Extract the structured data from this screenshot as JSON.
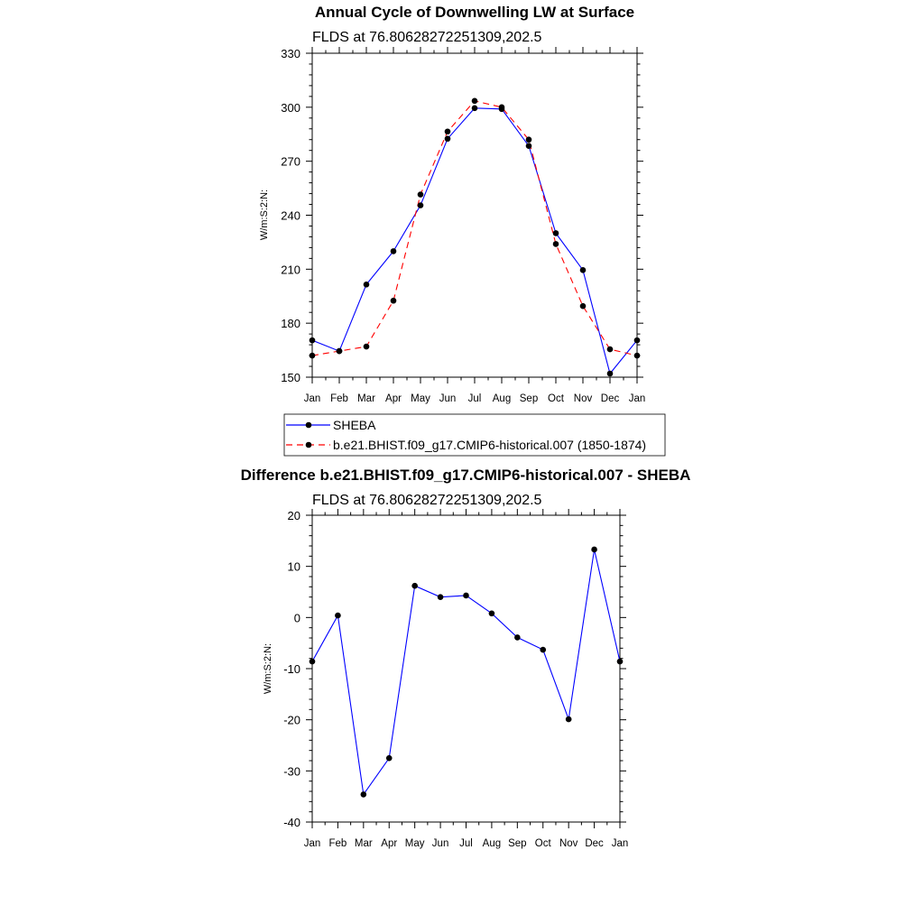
{
  "chart_data": [
    {
      "type": "line",
      "title": "Annual Cycle of Downwelling LW at Surface",
      "subtitle": "FLDS at 76.80628272251309,202.5",
      "ylabel": "W/m:S:2:N:",
      "ylim": [
        150,
        330
      ],
      "yticks": [
        "150",
        "180",
        "210",
        "240",
        "270",
        "300",
        "330"
      ],
      "categories": [
        "Jan",
        "Feb",
        "Mar",
        "Apr",
        "May",
        "Jun",
        "Jul",
        "Aug",
        "Sep",
        "Oct",
        "Nov",
        "Dec",
        "Jan"
      ],
      "legend": "below",
      "series": [
        {
          "name": "SHEBA",
          "color": "#0000ff",
          "dash": "solid",
          "values": [
            170.5,
            164.5,
            201.5,
            220.0,
            245.5,
            282.5,
            299.5,
            299.0,
            278.5,
            230.0,
            209.5,
            152.0,
            170.5
          ]
        },
        {
          "name": "b.e21.BHIST.f09_g17.CMIP6-historical.007 (1850-1874)",
          "color": "#ff0000",
          "dash": "dashed",
          "values": [
            162.0,
            164.5,
            167.0,
            192.5,
            251.5,
            286.5,
            303.5,
            300.0,
            282.0,
            224.0,
            189.5,
            165.5,
            162.0
          ]
        }
      ]
    },
    {
      "type": "line",
      "title": "Difference b.e21.BHIST.f09_g17.CMIP6-historical.007 - SHEBA",
      "subtitle": "FLDS at 76.80628272251309,202.5",
      "ylabel": "W/m:S:2:N:",
      "ylim": [
        -40,
        20
      ],
      "yticks": [
        "-40",
        "-30",
        "-20",
        "-10",
        "0",
        "10",
        "20"
      ],
      "categories": [
        "Jan",
        "Feb",
        "Mar",
        "Apr",
        "May",
        "Jun",
        "Jul",
        "Aug",
        "Sep",
        "Oct",
        "Nov",
        "Dec",
        "Jan"
      ],
      "series": [
        {
          "color": "#0000ff",
          "dash": "solid",
          "values": [
            -8.6,
            0.4,
            -34.6,
            -27.5,
            6.2,
            4.0,
            4.3,
            0.8,
            -3.9,
            -6.3,
            -19.9,
            13.3,
            -8.6
          ]
        }
      ]
    }
  ]
}
